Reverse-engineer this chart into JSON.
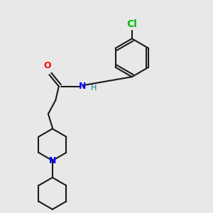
{
  "bg_color": "#e8e8e8",
  "bond_color": "#1a1a1a",
  "N_color": "#0000ff",
  "O_color": "#ff0000",
  "Cl_color": "#00bb00",
  "H_color": "#008080",
  "lw": 1.5,
  "font_size": 9,
  "xlim": [
    0,
    1
  ],
  "ylim": [
    0,
    1
  ]
}
